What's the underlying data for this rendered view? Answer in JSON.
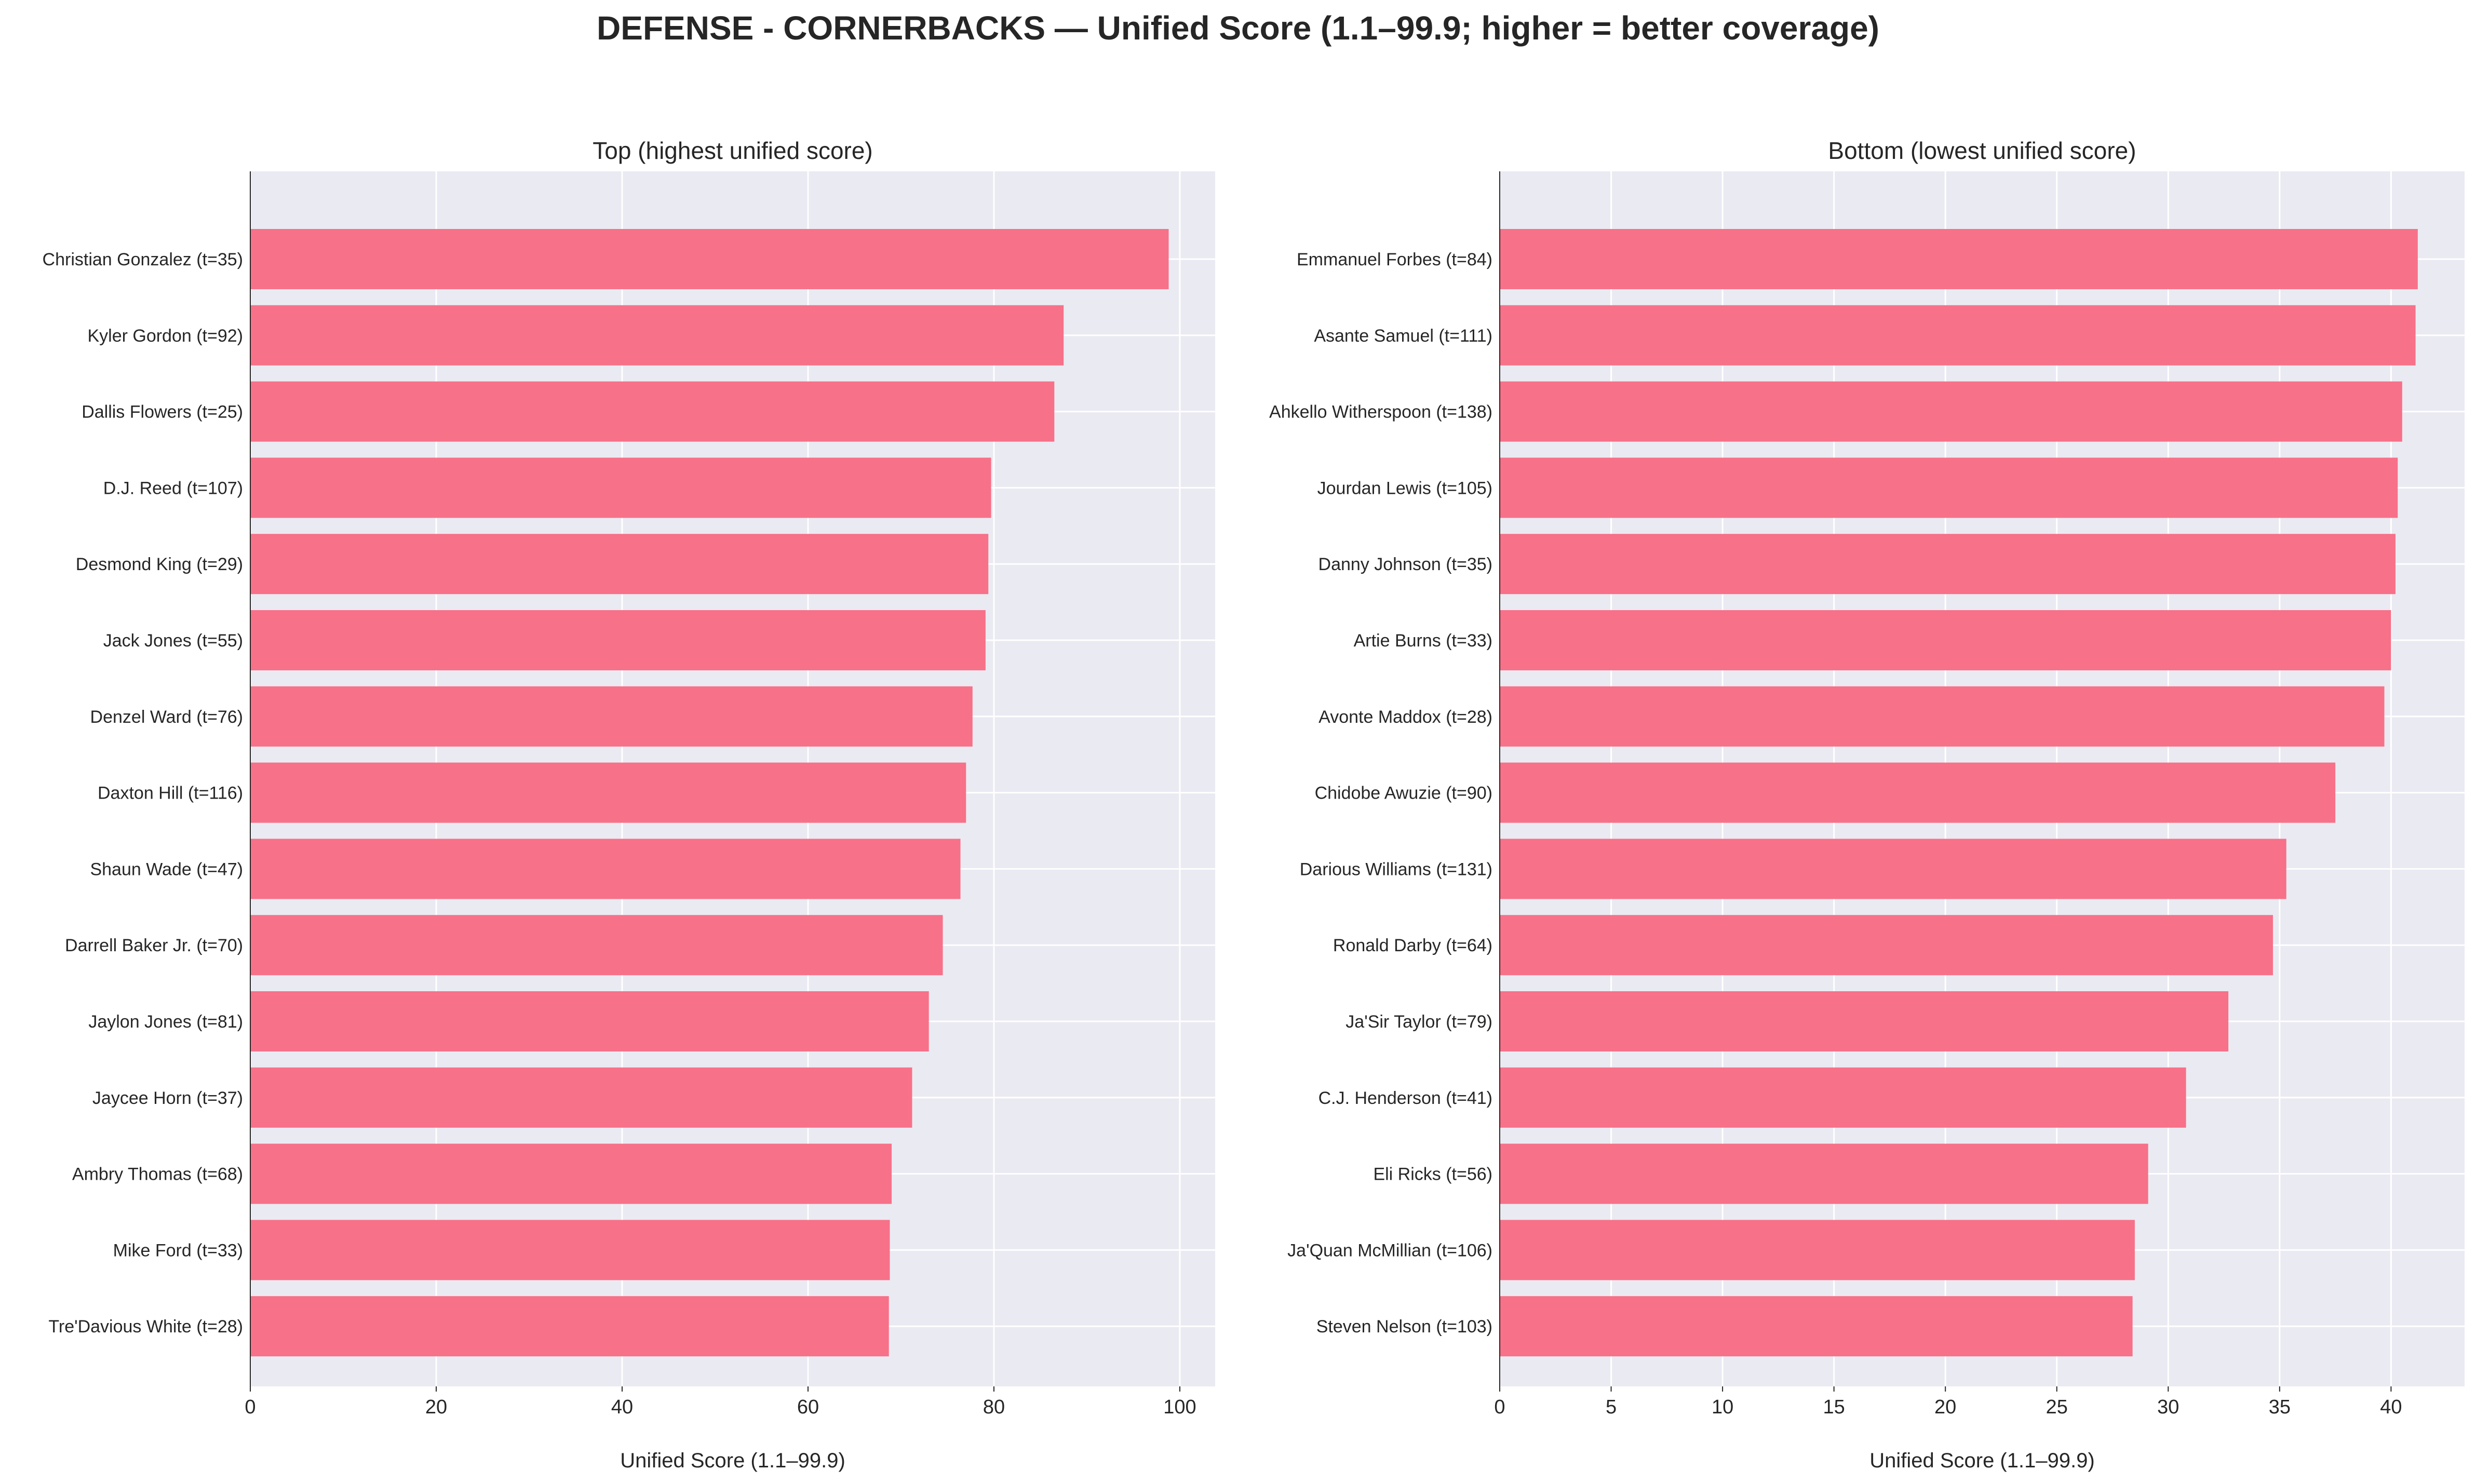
{
  "figure": {
    "title": "DEFENSE - CORNERBACKS — Unified Score (1.1–99.9; higher = better coverage)"
  },
  "colors": {
    "bar": "#f77189",
    "plot_background": "#eaeaf2",
    "grid": "#ffffff",
    "text": "#262626"
  },
  "chart_data": [
    {
      "type": "bar",
      "orientation": "horizontal",
      "title": "Top (highest unified score)",
      "xlabel": "Unified Score (1.1–99.9)",
      "ylabel": "",
      "xlim": [
        0,
        103.8
      ],
      "xticks": [
        0,
        20,
        40,
        60,
        80,
        100
      ],
      "xtick_labels": [
        "0",
        "20",
        "40",
        "60",
        "80",
        "100"
      ],
      "grid": true,
      "categories": [
        "Christian Gonzalez  (t=35)",
        "Kyler Gordon  (t=92)",
        "Dallis Flowers  (t=25)",
        "D.J. Reed  (t=107)",
        "Desmond King  (t=29)",
        "Jack Jones  (t=55)",
        "Denzel Ward  (t=76)",
        "Daxton Hill  (t=116)",
        "Shaun Wade  (t=47)",
        "Darrell Baker Jr.  (t=70)",
        "Jaylon Jones  (t=81)",
        "Jaycee Horn  (t=37)",
        "Ambry Thomas  (t=68)",
        "Mike Ford  (t=33)",
        "Tre'Davious White  (t=28)"
      ],
      "values": [
        98.8,
        87.5,
        86.5,
        79.7,
        79.4,
        79.1,
        77.7,
        77.0,
        76.4,
        74.5,
        73.0,
        71.2,
        69.0,
        68.8,
        68.7
      ]
    },
    {
      "type": "bar",
      "orientation": "horizontal",
      "title": "Bottom (lowest unified score)",
      "xlabel": "Unified Score (1.1–99.9)",
      "ylabel": "",
      "xlim": [
        0,
        43.3
      ],
      "xticks": [
        0,
        5,
        10,
        15,
        20,
        25,
        30,
        35,
        40
      ],
      "xtick_labels": [
        "0",
        "5",
        "10",
        "15",
        "20",
        "25",
        "30",
        "35",
        "40"
      ],
      "grid": true,
      "categories": [
        "Emmanuel Forbes  (t=84)",
        "Asante Samuel  (t=111)",
        "Ahkello Witherspoon  (t=138)",
        "Jourdan Lewis  (t=105)",
        "Danny Johnson  (t=35)",
        "Artie Burns  (t=33)",
        "Avonte Maddox  (t=28)",
        "Chidobe Awuzie  (t=90)",
        "Darious Williams  (t=131)",
        "Ronald Darby  (t=64)",
        "Ja'Sir Taylor  (t=79)",
        "C.J. Henderson  (t=41)",
        "Eli Ricks  (t=56)",
        "Ja'Quan McMillian  (t=106)",
        "Steven Nelson  (t=103)"
      ],
      "values": [
        41.2,
        41.1,
        40.5,
        40.3,
        40.2,
        40.0,
        39.7,
        37.5,
        35.3,
        34.7,
        32.7,
        30.8,
        29.1,
        28.5,
        28.4
      ]
    }
  ]
}
